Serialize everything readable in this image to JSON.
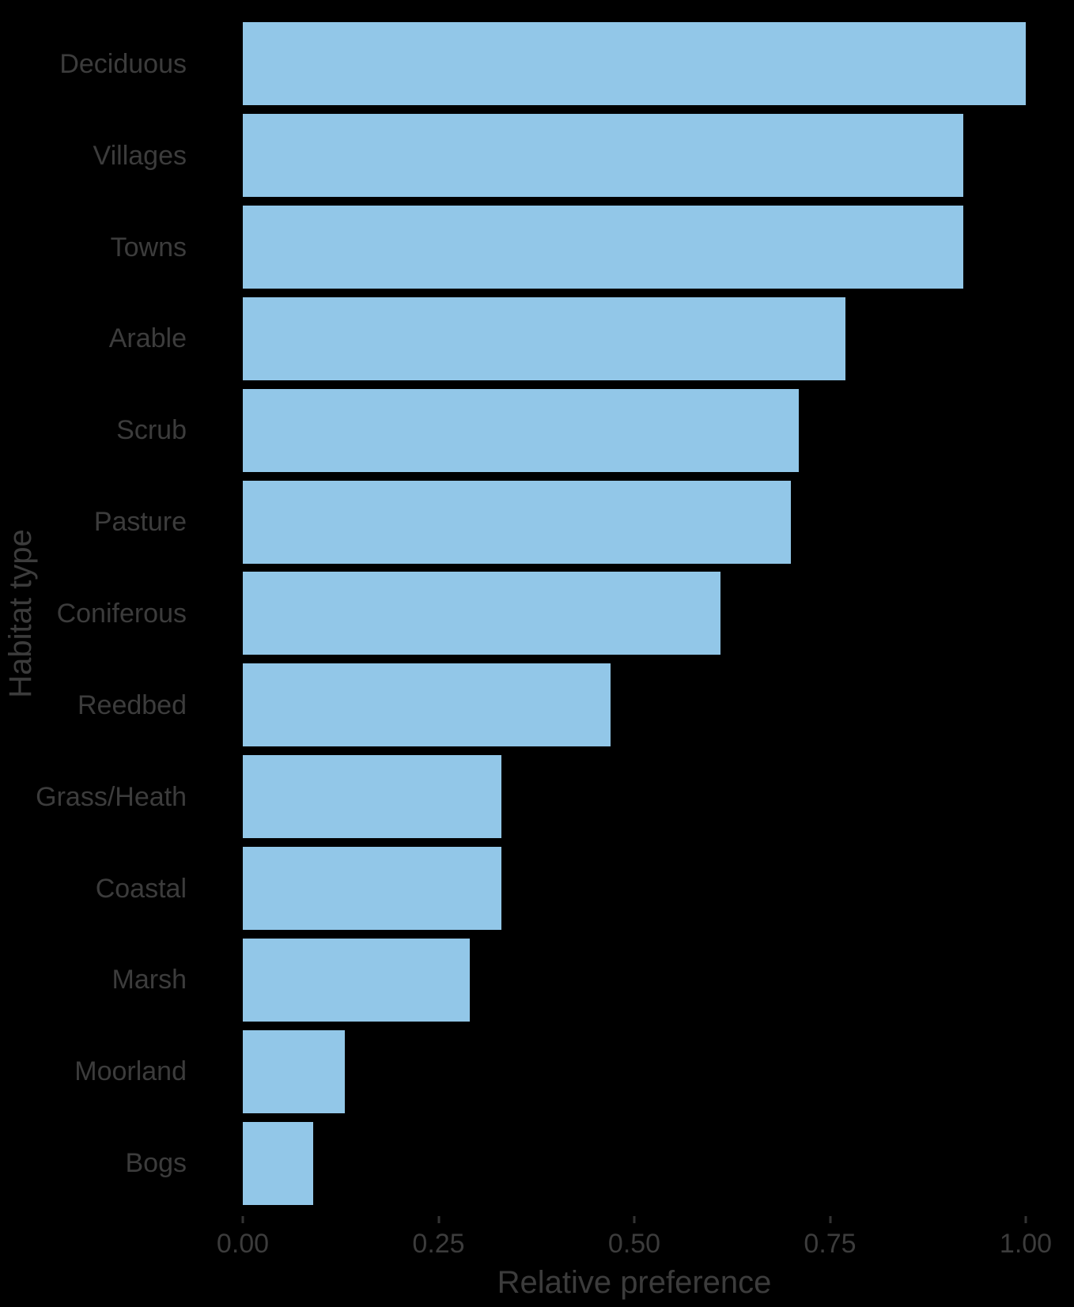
{
  "figure": {
    "background_color": "#000000",
    "text_color": "#3C3C3C",
    "tick_color": "#333333"
  },
  "chart_data": {
    "type": "bar",
    "orientation": "horizontal",
    "title": "",
    "xlabel": "Relative preference",
    "ylabel": "Habitat type",
    "categories": [
      "Deciduous",
      "Villages",
      "Towns",
      "Arable",
      "Scrub",
      "Pasture",
      "Coniferous",
      "Reedbed",
      "Grass/Heath",
      "Coastal",
      "Marsh",
      "Moorland",
      "Bogs"
    ],
    "values": [
      1.0,
      0.92,
      0.92,
      0.77,
      0.71,
      0.7,
      0.61,
      0.47,
      0.33,
      0.33,
      0.29,
      0.13,
      0.09
    ],
    "bar_color": "#92C7E8",
    "xlim": [
      0,
      1
    ],
    "x_ticks": [
      0,
      0.25,
      0.5,
      0.75,
      1
    ],
    "x_tick_labels": [
      "0.00",
      "0.25",
      "0.50",
      "0.75",
      "1.00"
    ],
    "grid": false,
    "legend": false
  }
}
